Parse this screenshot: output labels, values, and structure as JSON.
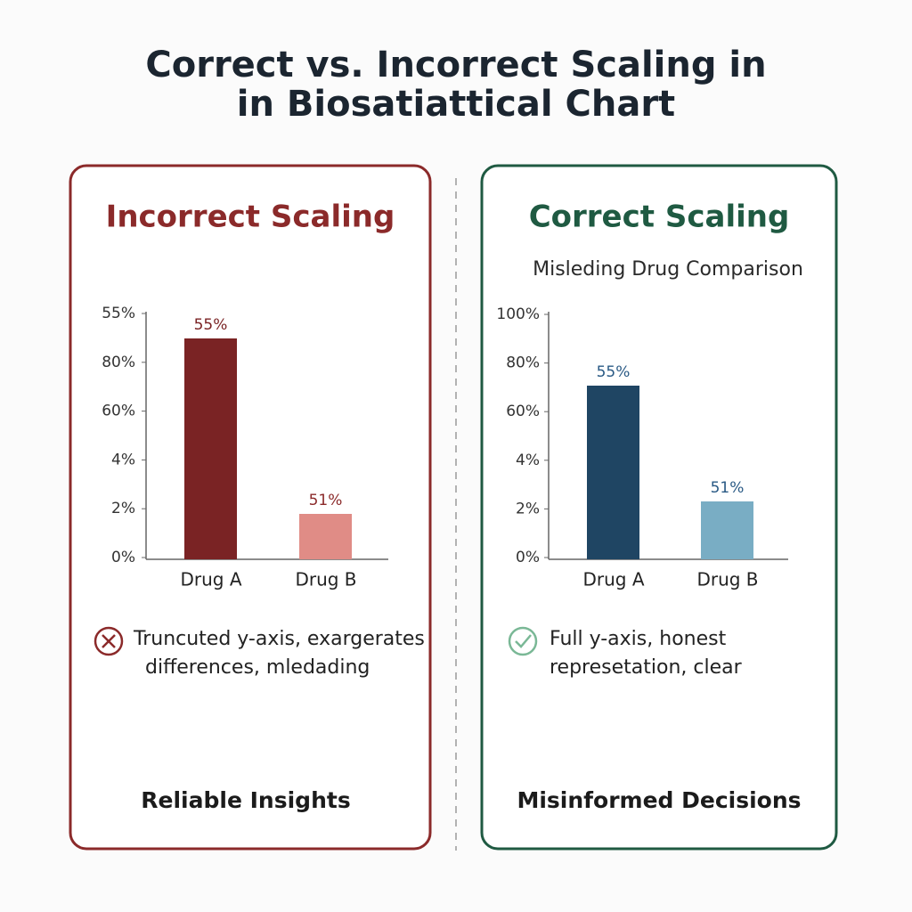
{
  "title": [
    "Correct vs. Incorrect Scaling in",
    "in Biosatiattical Chart"
  ],
  "panels": [
    {
      "heading": "Incorrect Scaling",
      "y_axis_labels": [
        "55%",
        "80%",
        "60%",
        "4%",
        "2%",
        "0%"
      ],
      "bars": [
        {
          "category": "Drug A",
          "label": "55%"
        },
        {
          "category": "Drug B",
          "label": "51%"
        }
      ],
      "note": [
        "Truncuted y-axis, exargerates",
        "differences, mledading"
      ],
      "footer": "Reliable Insights"
    },
    {
      "heading": "Correct Scaling",
      "subtitle": "Misleding Drug Comparison",
      "y_axis_labels": [
        "100%",
        "80%",
        "60%",
        "4%",
        "2%",
        "0%"
      ],
      "bars": [
        {
          "category": "Drug A",
          "label": "55%"
        },
        {
          "category": "Drug B",
          "label": "51%"
        }
      ],
      "note": [
        "Full y-axis, honest",
        "represetation, clear"
      ],
      "footer": "Misinformed Decisions"
    }
  ]
}
